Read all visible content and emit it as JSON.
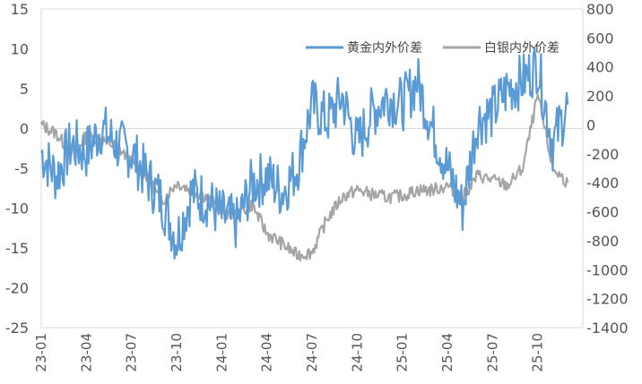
{
  "chart_data": {
    "type": "line",
    "title": "",
    "x_ticks": [
      "23-01",
      "23-04",
      "23-07",
      "23-10",
      "24-01",
      "24-04",
      "24-07",
      "24-10",
      "25-01",
      "25-04",
      "25-07",
      "25-10"
    ],
    "y_left": {
      "ylim": [
        -25,
        15
      ],
      "ticks": [
        "15",
        "10",
        "5",
        "0",
        "-5",
        "-10",
        "-15",
        "-20",
        "-25"
      ]
    },
    "y_right": {
      "ylim": [
        -1400,
        800
      ],
      "ticks": [
        "800",
        "600",
        "400",
        "200",
        "0",
        "-200",
        "-400",
        "-600",
        "-800",
        "-1000",
        "-1200",
        "-1400"
      ]
    },
    "legend_position": "top-right",
    "series": [
      {
        "name": "黄金内外价差",
        "axis": "left",
        "color": "#5B9BD5",
        "x": [
          "2023-01",
          "2023-02",
          "2023-03",
          "2023-04",
          "2023-05",
          "2023-06",
          "2023-07",
          "2023-08",
          "2023-09",
          "2023-10",
          "2023-11",
          "2023-12",
          "2024-01",
          "2024-02",
          "2024-03",
          "2024-04",
          "2024-05",
          "2024-06",
          "2024-07",
          "2024-08",
          "2024-09",
          "2024-10",
          "2024-11",
          "2024-12",
          "2025-01",
          "2025-02",
          "2025-03",
          "2025-04",
          "2025-05",
          "2025-06",
          "2025-07",
          "2025-08",
          "2025-09",
          "2025-10",
          "2025-11",
          "2025-12"
        ],
        "values": [
          -3,
          -6,
          -2,
          -3,
          0,
          -2,
          -3,
          -6,
          -9,
          -14,
          -8,
          -9,
          -11,
          -12,
          -7,
          -6,
          -8,
          -5,
          3,
          1,
          4,
          -2,
          2,
          4,
          3,
          6,
          0,
          -5,
          -10,
          1,
          2,
          5,
          6,
          8,
          -2,
          3
        ]
      },
      {
        "name": "白银内外价差",
        "axis": "right",
        "color": "#A5A5A5",
        "x": [
          "2023-01",
          "2023-02",
          "2023-03",
          "2023-04",
          "2023-05",
          "2023-06",
          "2023-07",
          "2023-08",
          "2023-09",
          "2023-10",
          "2023-11",
          "2023-12",
          "2024-01",
          "2024-02",
          "2024-03",
          "2024-04",
          "2024-05",
          "2024-06",
          "2024-07",
          "2024-08",
          "2024-09",
          "2024-10",
          "2024-11",
          "2024-12",
          "2025-01",
          "2025-02",
          "2025-03",
          "2025-04",
          "2025-05",
          "2025-06",
          "2025-07",
          "2025-08",
          "2025-09",
          "2025-10",
          "2025-11",
          "2025-12"
        ],
        "values": [
          0,
          -60,
          -200,
          -80,
          -100,
          -150,
          -250,
          -350,
          -530,
          -400,
          -450,
          -500,
          -600,
          -620,
          -550,
          -750,
          -820,
          -900,
          -880,
          -650,
          -500,
          -450,
          -480,
          -500,
          -490,
          -450,
          -450,
          -420,
          -500,
          -350,
          -380,
          -420,
          -300,
          200,
          -300,
          -400
        ]
      }
    ]
  }
}
